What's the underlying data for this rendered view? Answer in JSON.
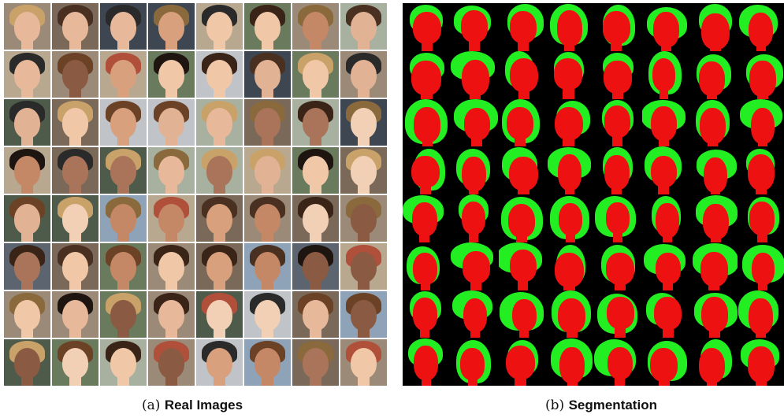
{
  "captions": {
    "a_tag": "(a)",
    "a_label": "Real Images",
    "b_tag": "(b)",
    "b_label": "Segmentation"
  },
  "grid": {
    "rows": 8,
    "cols": 8
  },
  "colors": {
    "face_mask": "#ee1111",
    "hair_mask": "#22ee22",
    "background_mask": "#000000"
  }
}
